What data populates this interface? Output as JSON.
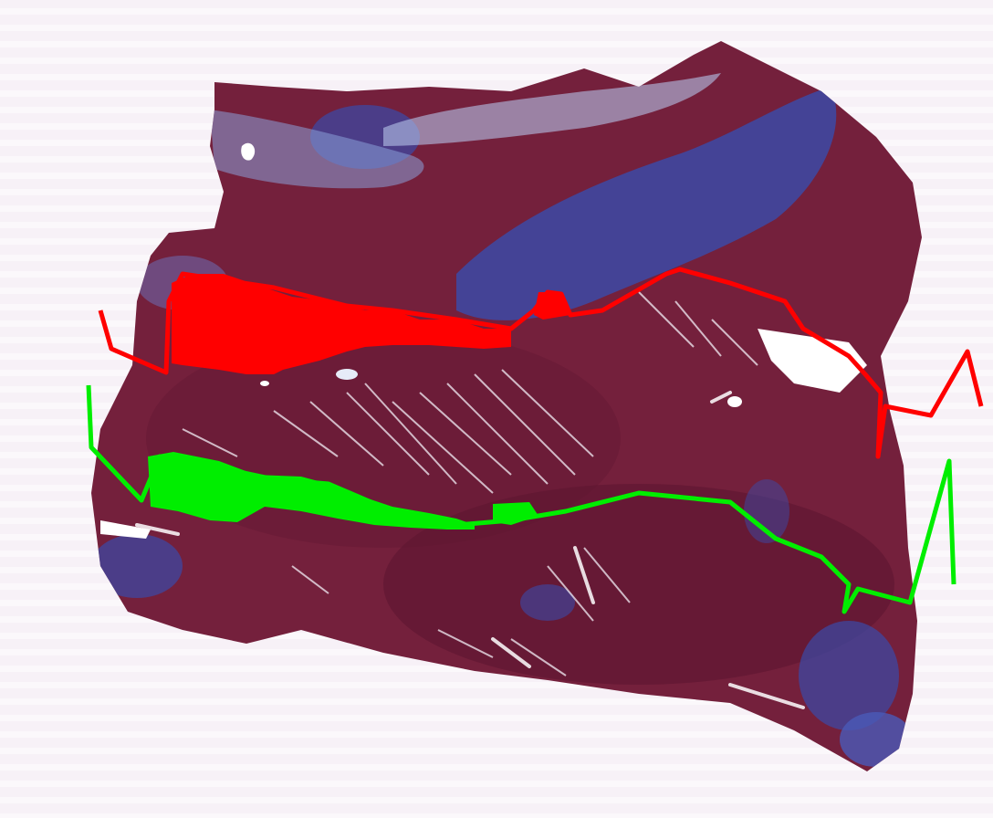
{
  "image": {
    "subject": "stained-tissue-section",
    "stain_colors": {
      "background": "#f6f0f6",
      "muscle": "#7a1f3a",
      "muscle_dark": "#5e1630",
      "collagen": "#3a4aa8",
      "collagen_light": "#8aa0d8",
      "fiber_gap": "#f3eef6"
    },
    "annotations": [
      {
        "name": "upper-trace",
        "color": "#ff0000"
      },
      {
        "name": "lower-trace",
        "color": "#00ee00"
      }
    ]
  }
}
